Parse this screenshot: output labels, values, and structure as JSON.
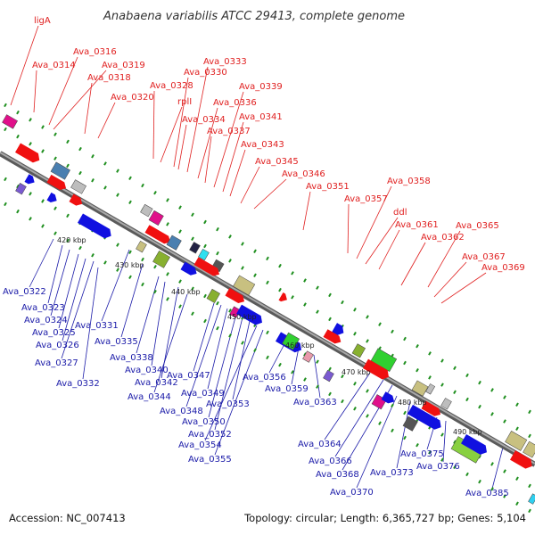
{
  "title": "Anabaena variabilis ATCC 29413, complete genome",
  "footer": {
    "accession": "Accession: NC_007413",
    "summary": "Topology: circular; Length: 6,365,727 bp; Genes: 5,104"
  },
  "colors": {
    "backbone": "#7a7a7a",
    "label_red": "#e02020",
    "label_blue": "#1a1aa8",
    "arrow_red": "#f01010",
    "arrow_blue": "#1010e0",
    "tick_green": "#1f8f1f"
  },
  "kbp_ticks": [
    "420 kbp",
    "430 kbp",
    "440 kbp",
    "450 kbp",
    "460 kbp",
    "470 kbp",
    "480 kbp",
    "490 kbp"
  ],
  "red_labels": [
    "ligA",
    "Ava_0314",
    "Ava_0316",
    "Ava_0319",
    "Ava_0318",
    "Ava_0320",
    "Ava_0328",
    "rplI",
    "Ava_0330",
    "Ava_0333",
    "Ava_0334",
    "Ava_0336",
    "Ava_0337",
    "Ava_0339",
    "Ava_0341",
    "Ava_0343",
    "Ava_0345",
    "Ava_0346",
    "Ava_0351",
    "Ava_0357",
    "Ava_0358",
    "ddl",
    "Ava_0361",
    "Ava_0362",
    "Ava_0365",
    "Ava_0367",
    "Ava_0369"
  ],
  "blue_labels": [
    "Ava_0322",
    "Ava_0323",
    "Ava_0324",
    "Ava_0325",
    "Ava_0326",
    "Ava_0327",
    "Ava_0331",
    "Ava_0332",
    "Ava_0335",
    "Ava_0338",
    "Ava_0340",
    "Ava_0342",
    "Ava_0344",
    "Ava_0347",
    "Ava_0348",
    "Ava_0349",
    "Ava_0350",
    "Ava_0352",
    "Ava_0353",
    "Ava_0354",
    "Ava_0355",
    "Ava_0356",
    "Ava_0359",
    "Ava_0363",
    "Ava_0364",
    "Ava_0366",
    "Ava_0368",
    "Ava_0370",
    "Ava_0373",
    "Ava_0375",
    "Ava_0376",
    "Ava_0385"
  ]
}
